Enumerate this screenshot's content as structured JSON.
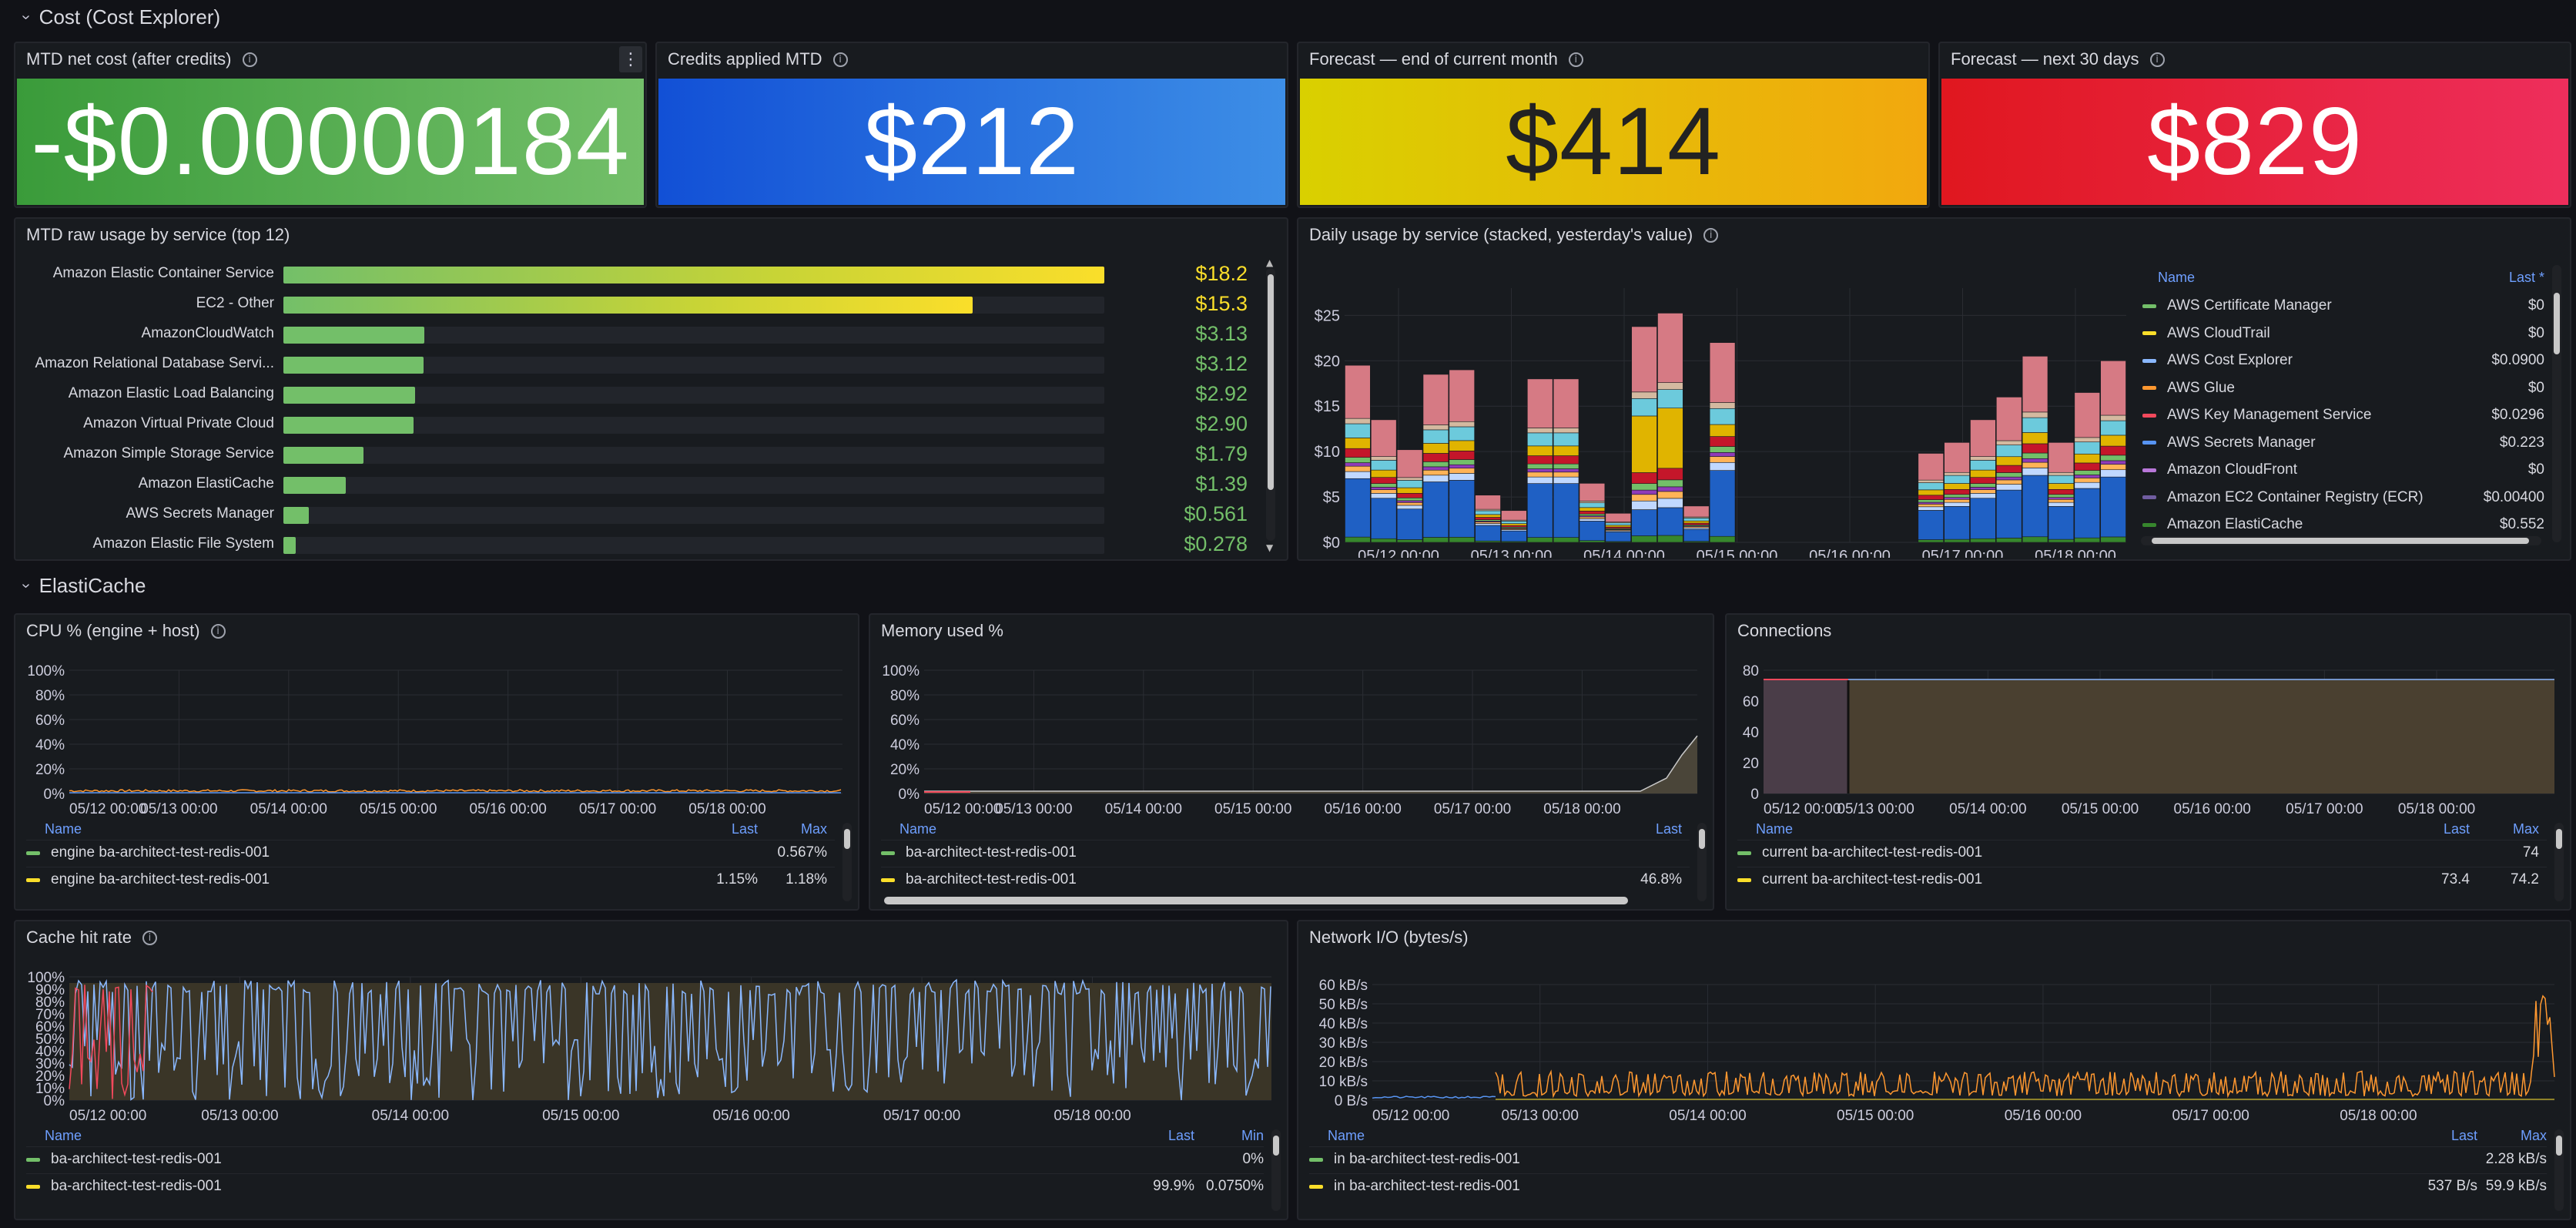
{
  "section_cost": {
    "title": "Cost (Cost Explorer)"
  },
  "section_elasticache": {
    "title": "ElastiCache"
  },
  "stats": [
    {
      "title": "MTD net cost (after credits)",
      "value": "-$0.00000184",
      "bg": "#56a64b"
    },
    {
      "title": "Credits applied MTD",
      "value": "$212",
      "bg": "#3274d9"
    },
    {
      "title": "Forecast — end of current month",
      "value": "$414",
      "bg": "#e0b400"
    },
    {
      "title": "Forecast — next 30 days",
      "value": "$829",
      "bg": "#e02f44"
    }
  ],
  "bar_gauge": {
    "title": "MTD raw usage by service (top 12)",
    "rows": [
      {
        "label": "Amazon Elastic Container Service",
        "value": "$18.2",
        "fraction": 1.0
      },
      {
        "label": "EC2 - Other",
        "value": "$15.3",
        "fraction": 0.84
      },
      {
        "label": "AmazonCloudWatch",
        "value": "$3.13",
        "fraction": 0.172
      },
      {
        "label": "Amazon Relational Database Servi...",
        "value": "$3.12",
        "fraction": 0.171
      },
      {
        "label": "Amazon Elastic Load Balancing",
        "value": "$2.92",
        "fraction": 0.16
      },
      {
        "label": "Amazon Virtual Private Cloud",
        "value": "$2.90",
        "fraction": 0.159
      },
      {
        "label": "Amazon Simple Storage Service",
        "value": "$1.79",
        "fraction": 0.098
      },
      {
        "label": "Amazon ElastiCache",
        "value": "$1.39",
        "fraction": 0.076
      },
      {
        "label": "AWS Secrets Manager",
        "value": "$0.561",
        "fraction": 0.031
      },
      {
        "label": "Amazon Elastic File System",
        "value": "$0.278",
        "fraction": 0.015
      }
    ]
  },
  "daily": {
    "title": "Daily usage by service (stacked, yesterday's value)",
    "legend_name": "Name",
    "legend_last": "Last *",
    "legend": [
      {
        "name": "AWS Certificate Manager",
        "value": "$0",
        "color": "#73bf69"
      },
      {
        "name": "AWS CloudTrail",
        "value": "$0",
        "color": "#fade2a"
      },
      {
        "name": "AWS Cost Explorer",
        "value": "$0.0900",
        "color": "#8ab8ff"
      },
      {
        "name": "AWS Glue",
        "value": "$0",
        "color": "#ff9830"
      },
      {
        "name": "AWS Key Management Service",
        "value": "$0.0296",
        "color": "#f2495c"
      },
      {
        "name": "AWS Secrets Manager",
        "value": "$0.223",
        "color": "#5794f2"
      },
      {
        "name": "Amazon CloudFront",
        "value": "$0",
        "color": "#b877d9"
      },
      {
        "name": "Amazon EC2 Container Registry (ECR)",
        "value": "$0.00400",
        "color": "#705da0"
      },
      {
        "name": "Amazon ElastiCache",
        "value": "$0.552",
        "color": "#37872d"
      }
    ]
  },
  "chart_data": [
    {
      "type": "bar",
      "title": "MTD raw usage by service (top 12)",
      "categories": [
        "Amazon Elastic Container Service",
        "EC2 - Other",
        "AmazonCloudWatch",
        "Amazon Relational Database Servi...",
        "Amazon Elastic Load Balancing",
        "Amazon Virtual Private Cloud",
        "Amazon Simple Storage Service",
        "Amazon ElastiCache",
        "AWS Secrets Manager",
        "Amazon Elastic File System"
      ],
      "values": [
        18.2,
        15.3,
        3.13,
        3.12,
        2.92,
        2.9,
        1.79,
        1.39,
        0.561,
        0.278
      ]
    },
    {
      "type": "bar",
      "title": "Daily usage by service (stacked, yesterday's value)",
      "stacked": true,
      "y_ticks": [
        "$0",
        "$5",
        "$10",
        "$15",
        "$20",
        "$25"
      ],
      "ylim": [
        0,
        28
      ],
      "x_ticks": [
        "05/12 00:00",
        "05/13 00:00",
        "05/14 00:00",
        "05/15 00:00",
        "05/16 00:00",
        "05/17 00:00",
        "05/18 00:00"
      ],
      "totals": [
        19.5,
        13.5,
        10.2,
        18.5,
        19.0,
        5.2,
        3.5,
        18.0,
        18.0,
        6.5,
        3.2,
        24.0,
        25.5,
        4.0,
        22.0,
        0,
        0,
        0,
        0,
        0,
        0,
        0,
        9.8,
        11.0,
        13.5,
        16.0,
        20.5,
        11.0,
        16.5,
        20.0
      ],
      "series_colors": [
        "#37872d",
        "#1f60c4",
        "#c0d8ff",
        "#ffb357",
        "#8f3bb8",
        "#73bf69",
        "#c4162a",
        "#e0b400",
        "#6ccadc",
        "#d4b9a0",
        "#d67a84"
      ]
    },
    {
      "type": "line",
      "title": "CPU % (engine + host)",
      "y_ticks": [
        "0%",
        "20%",
        "40%",
        "60%",
        "80%",
        "100%"
      ],
      "x_ticks": [
        "05/12 00:00",
        "05/13 00:00",
        "05/14 00:00",
        "05/15 00:00",
        "05/16 00:00",
        "05/17 00:00",
        "05/18 00:00"
      ],
      "series": [
        {
          "name": "engine ba-architect-test-redis-001",
          "last": "",
          "max": "0.567%"
        },
        {
          "name": "engine ba-architect-test-redis-001",
          "last": "1.15%",
          "max": "1.18%"
        }
      ]
    },
    {
      "type": "line",
      "title": "Memory used %",
      "y_ticks": [
        "0%",
        "20%",
        "40%",
        "60%",
        "80%",
        "100%"
      ],
      "x_ticks": [
        "05/12 00:00",
        "05/13 00:00",
        "05/14 00:00",
        "05/15 00:00",
        "05/16 00:00",
        "05/17 00:00",
        "05/18 00:00"
      ],
      "series": [
        {
          "name": "ba-architect-test-redis-001",
          "last": ""
        },
        {
          "name": "ba-architect-test-redis-001",
          "last": "46.8%"
        }
      ]
    },
    {
      "type": "area",
      "title": "Connections",
      "y_ticks": [
        "0",
        "20",
        "40",
        "60",
        "80"
      ],
      "x_ticks": [
        "05/12 00:00",
        "05/13 00:00",
        "05/14 00:00",
        "05/15 00:00",
        "05/16 00:00",
        "05/17 00:00",
        "05/18 00:00"
      ],
      "series": [
        {
          "name": "current ba-architect-test-redis-001",
          "last": "",
          "max": "74"
        },
        {
          "name": "current ba-architect-test-redis-001",
          "last": "73.4",
          "max": "74.2"
        }
      ]
    },
    {
      "type": "line",
      "title": "Cache hit rate",
      "y_ticks": [
        "0%",
        "10%",
        "20%",
        "30%",
        "40%",
        "50%",
        "60%",
        "70%",
        "80%",
        "90%",
        "100%"
      ],
      "x_ticks": [
        "05/12 00:00",
        "05/13 00:00",
        "05/14 00:00",
        "05/15 00:00",
        "05/16 00:00",
        "05/17 00:00",
        "05/18 00:00"
      ],
      "series": [
        {
          "name": "ba-architect-test-redis-001",
          "last": "",
          "min": "0%"
        },
        {
          "name": "ba-architect-test-redis-001",
          "last": "99.9%",
          "min": "0.0750%"
        }
      ]
    },
    {
      "type": "line",
      "title": "Network I/O (bytes/s)",
      "y_ticks": [
        "0 B/s",
        "10 kB/s",
        "20 kB/s",
        "30 kB/s",
        "40 kB/s",
        "50 kB/s",
        "60 kB/s"
      ],
      "x_ticks": [
        "05/12 00:00",
        "05/13 00:00",
        "05/14 00:00",
        "05/15 00:00",
        "05/16 00:00",
        "05/17 00:00",
        "05/18 00:00"
      ],
      "series": [
        {
          "name": "in ba-architect-test-redis-001",
          "last": "",
          "max": "2.28 kB/s"
        },
        {
          "name": "in ba-architect-test-redis-001",
          "last": "537 B/s",
          "max": "59.9 kB/s"
        }
      ]
    }
  ],
  "ts_panels": {
    "cpu": {
      "title": "CPU % (engine + host)",
      "col_name": "Name",
      "col_a": "Last",
      "col_b": "Max",
      "rows": [
        {
          "name": "engine ba-architect-test-redis-001",
          "a": "",
          "b": "0.567%",
          "color": "#73bf69"
        },
        {
          "name": "engine ba-architect-test-redis-001",
          "a": "1.15%",
          "b": "1.18%",
          "color": "#fade2a"
        }
      ]
    },
    "mem": {
      "title": "Memory used %",
      "col_name": "Name",
      "col_a": "Last",
      "rows": [
        {
          "name": "ba-architect-test-redis-001",
          "a": "",
          "color": "#73bf69"
        },
        {
          "name": "ba-architect-test-redis-001",
          "a": "46.8%",
          "color": "#fade2a"
        }
      ]
    },
    "conn": {
      "title": "Connections",
      "col_name": "Name",
      "col_a": "Last",
      "col_b": "Max",
      "rows": [
        {
          "name": "current ba-architect-test-redis-001",
          "a": "",
          "b": "74",
          "color": "#73bf69"
        },
        {
          "name": "current ba-architect-test-redis-001",
          "a": "73.4",
          "b": "74.2",
          "color": "#fade2a"
        }
      ]
    },
    "hit": {
      "title": "Cache hit rate",
      "col_name": "Name",
      "col_a": "Last",
      "col_b": "Min",
      "rows": [
        {
          "name": "ba-architect-test-redis-001",
          "a": "",
          "b": "0%",
          "color": "#73bf69"
        },
        {
          "name": "ba-architect-test-redis-001",
          "a": "99.9%",
          "b": "0.0750%",
          "color": "#fade2a"
        }
      ]
    },
    "net": {
      "title": "Network I/O (bytes/s)",
      "col_name": "Name",
      "col_a": "Last",
      "col_b": "Max",
      "rows": [
        {
          "name": "in ba-architect-test-redis-001",
          "a": "",
          "b": "2.28 kB/s",
          "color": "#73bf69"
        },
        {
          "name": "in ba-architect-test-redis-001",
          "a": "537 B/s",
          "b": "59.9 kB/s",
          "color": "#fade2a"
        }
      ]
    }
  }
}
